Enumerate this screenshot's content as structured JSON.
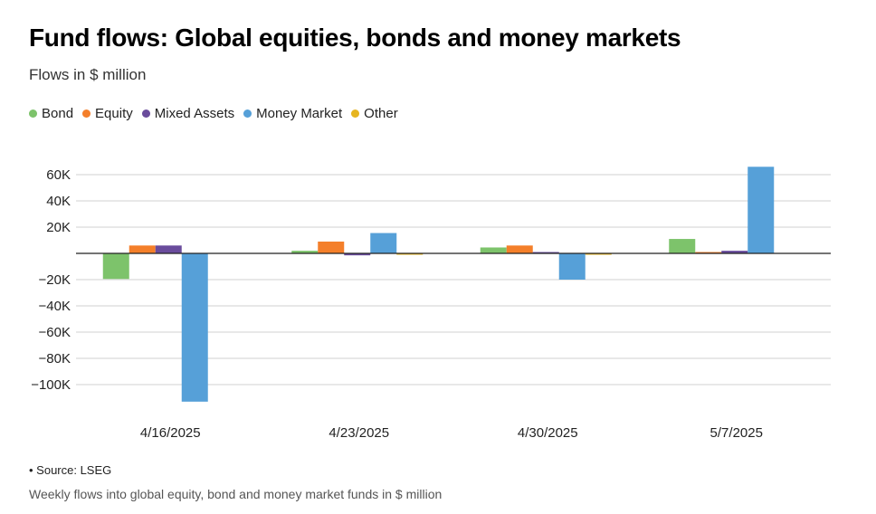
{
  "header": {
    "title": "Fund flows: Global equities, bonds and money markets",
    "subtitle": "Flows in $ million"
  },
  "footer": {
    "source": "• Source: LSEG",
    "caption": "Weekly flows into global equity, bond and money market funds in $ million"
  },
  "chart_data": {
    "type": "bar",
    "categories": [
      "4/16/2025",
      "4/23/2025",
      "4/30/2025",
      "5/7/2025"
    ],
    "series": [
      {
        "name": "Bond",
        "color": "#7dc36b",
        "values": [
          -19500,
          2000,
          4500,
          11000
        ]
      },
      {
        "name": "Equity",
        "color": "#f47f2a",
        "values": [
          6000,
          9000,
          6000,
          500
        ]
      },
      {
        "name": "Mixed Assets",
        "color": "#6a4c9c",
        "values": [
          6000,
          -1500,
          500,
          2000
        ]
      },
      {
        "name": "Money Market",
        "color": "#56a0d8",
        "values": [
          -113000,
          15500,
          -20000,
          66000
        ]
      },
      {
        "name": "Other",
        "color": "#e6b520",
        "values": [
          0,
          -500,
          -500,
          0
        ]
      }
    ],
    "yticks": [
      60000,
      40000,
      20000,
      -20000,
      -40000,
      -60000,
      -80000,
      -100000
    ],
    "ytick_labels": [
      "60K",
      "40K",
      "20K",
      "−20K",
      "−40K",
      "−60K",
      "−80K",
      "−100K"
    ],
    "ylim": [
      -115000,
      66000
    ],
    "grid": true,
    "legend_position": "top-left"
  }
}
